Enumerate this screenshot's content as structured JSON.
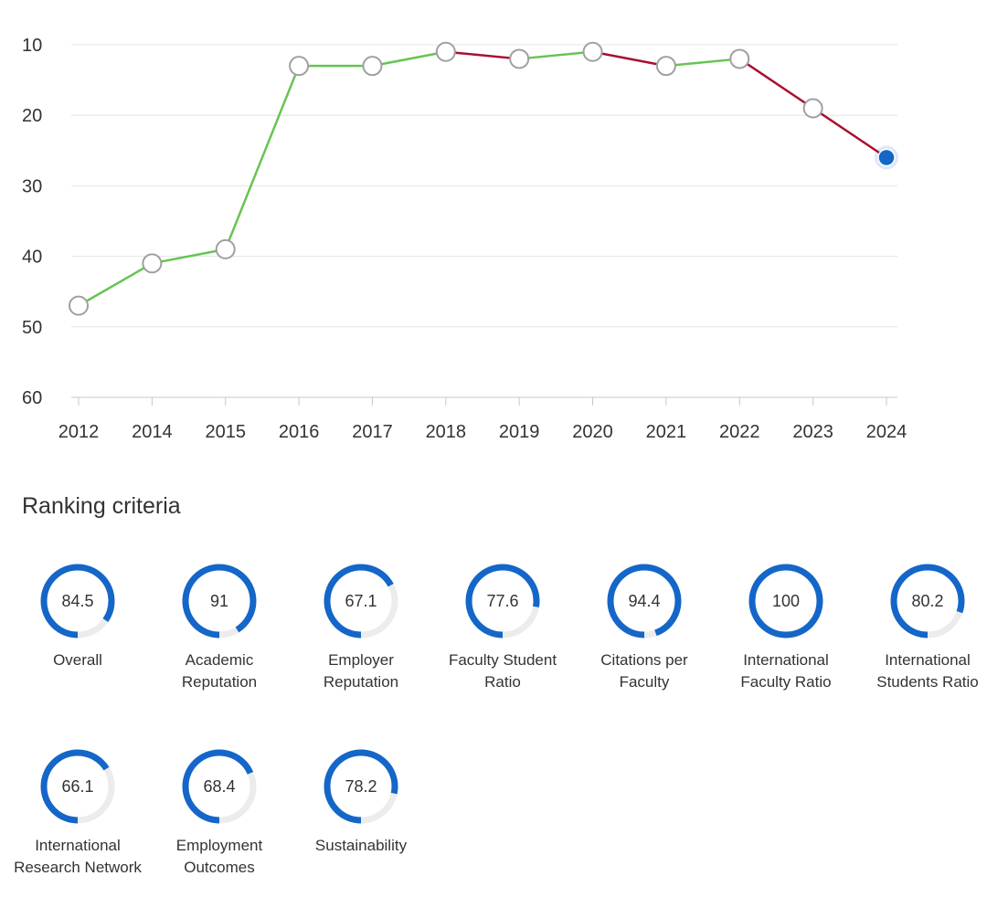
{
  "chart_data": {
    "type": "line",
    "x": [
      "2012",
      "2014",
      "2015",
      "2016",
      "2017",
      "2018",
      "2019",
      "2020",
      "2021",
      "2022",
      "2023",
      "2024"
    ],
    "values": [
      47,
      41,
      39,
      13,
      13,
      11,
      12,
      11,
      13,
      12,
      19,
      26
    ],
    "ylim": [
      10,
      60
    ],
    "y_inverted": true,
    "y_ticks": [
      "10",
      "20",
      "30",
      "40",
      "50",
      "60"
    ],
    "grid": true,
    "colors": {
      "improving": "#66c452",
      "declining": "#a8102e",
      "marker_stroke": "#a0a0a0",
      "highlight": "#1466c8",
      "grid": "#e4e4e4"
    }
  },
  "criteria_section": {
    "title": "Ranking criteria",
    "ring_color": "#1466c8",
    "track_color": "#ececec",
    "items": [
      {
        "label": "Overall",
        "value": "84.5",
        "score": 84.5
      },
      {
        "label": "Academic Reputation",
        "value": "91",
        "score": 91
      },
      {
        "label": "Employer Reputation",
        "value": "67.1",
        "score": 67.1
      },
      {
        "label": "Faculty Student Ratio",
        "value": "77.6",
        "score": 77.6
      },
      {
        "label": "Citations per Faculty",
        "value": "94.4",
        "score": 94.4
      },
      {
        "label": "International Faculty Ratio",
        "value": "100",
        "score": 100
      },
      {
        "label": "International Students Ratio",
        "value": "80.2",
        "score": 80.2
      },
      {
        "label": "International Research Network",
        "value": "66.1",
        "score": 66.1
      },
      {
        "label": "Employment Outcomes",
        "value": "68.4",
        "score": 68.4
      },
      {
        "label": "Sustainability",
        "value": "78.2",
        "score": 78.2
      }
    ]
  }
}
